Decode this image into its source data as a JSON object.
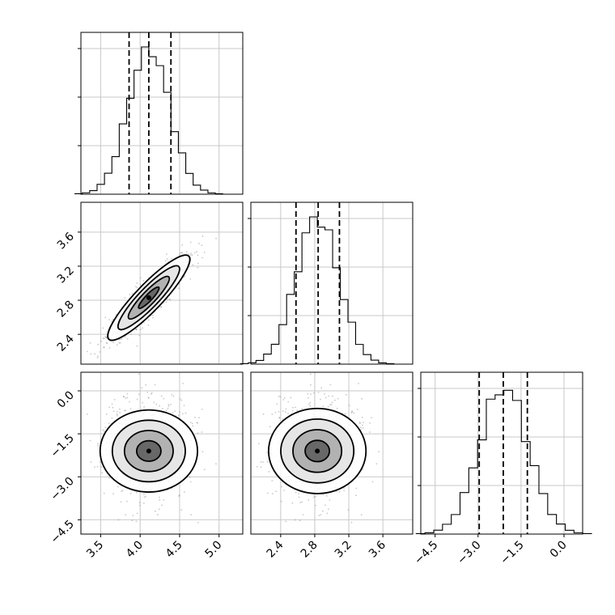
{
  "chart_data": {
    "type": "corner",
    "title": "",
    "grid": true,
    "parameters": [
      {
        "xlim": [
          3.25,
          5.3
        ],
        "ticks": [
          3.5,
          4.0,
          4.5,
          5.0
        ],
        "tick_labels": [
          "3.5",
          "4.0",
          "4.5",
          "5.0"
        ],
        "quantiles": [
          3.86,
          4.11,
          4.39
        ],
        "mean": 4.11,
        "sd": 0.26
      },
      {
        "xlim": [
          2.05,
          3.95
        ],
        "ticks": [
          2.4,
          2.8,
          3.2,
          3.6
        ],
        "tick_labels": [
          "2.4",
          "2.8",
          "3.2",
          "3.6"
        ],
        "quantiles": [
          2.58,
          2.84,
          3.09
        ],
        "mean": 2.83,
        "sd": 0.25
      },
      {
        "xlim": [
          -5.0,
          0.65
        ],
        "ticks": [
          -4.5,
          -3.0,
          -1.5,
          0.0
        ],
        "tick_labels": [
          "−4.5",
          "−3.0",
          "−1.5",
          "0.0"
        ],
        "quantiles": [
          -2.96,
          -2.12,
          -1.28
        ],
        "mean": -2.1,
        "sd": 0.85
      }
    ],
    "correlations": [
      [
        1,
        0.9,
        0.0
      ],
      [
        0.9,
        1,
        0.0
      ],
      [
        0.0,
        0.0,
        1
      ]
    ],
    "contour_levels_sigma": [
      0.5,
      1.0,
      1.5,
      2.0
    ],
    "histogram_bins": 20,
    "scatter_points": 900
  }
}
